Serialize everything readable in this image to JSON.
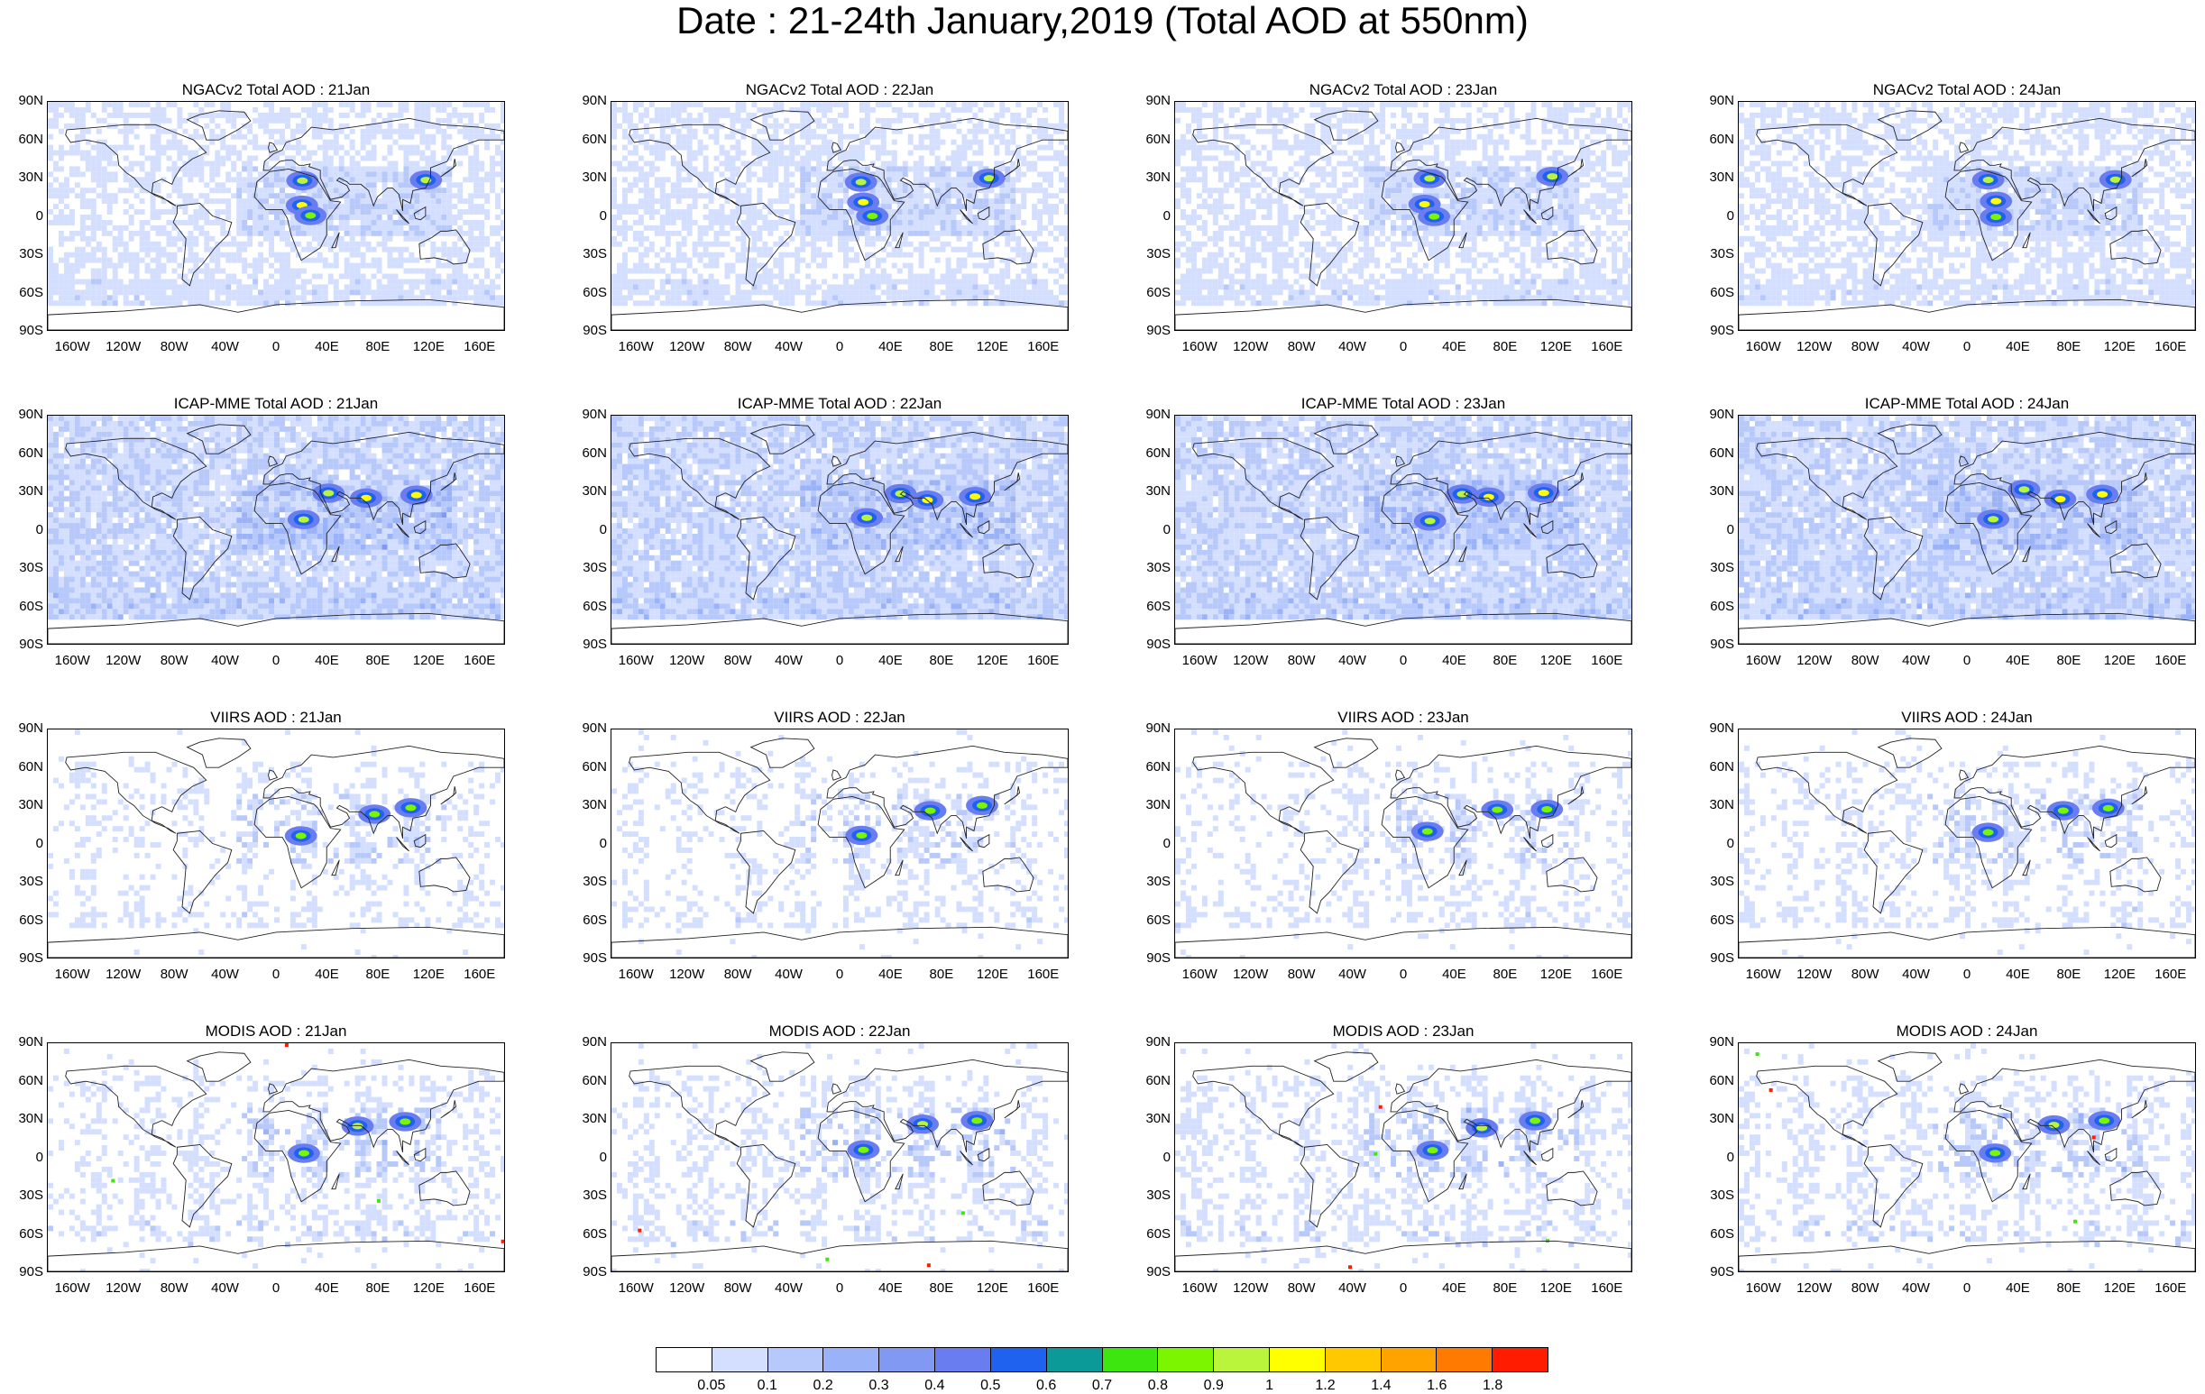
{
  "title": "Date : 21-24th January,2019 (Total AOD at 550nm)",
  "rows": [
    {
      "model": "NGACv2 Total AOD",
      "key": "ngac"
    },
    {
      "model": "ICAP-MME Total AOD",
      "key": "icap"
    },
    {
      "model": "VIIRS AOD",
      "key": "viirs"
    },
    {
      "model": "MODIS AOD",
      "key": "modis"
    }
  ],
  "panels": [
    {
      "title": "NGACv2 Total AOD : 21Jan"
    },
    {
      "title": "NGACv2 Total AOD : 22Jan"
    },
    {
      "title": "NGACv2 Total AOD : 23Jan"
    },
    {
      "title": "NGACv2 Total AOD : 24Jan"
    },
    {
      "title": "ICAP-MME Total AOD : 21Jan"
    },
    {
      "title": "ICAP-MME Total AOD : 22Jan"
    },
    {
      "title": "ICAP-MME Total AOD : 23Jan"
    },
    {
      "title": "ICAP-MME Total AOD : 24Jan"
    },
    {
      "title": "VIIRS AOD : 21Jan"
    },
    {
      "title": "VIIRS AOD : 22Jan"
    },
    {
      "title": "VIIRS AOD : 23Jan"
    },
    {
      "title": "VIIRS AOD : 24Jan"
    },
    {
      "title": "MODIS AOD : 21Jan"
    },
    {
      "title": "MODIS AOD : 22Jan"
    },
    {
      "title": "MODIS AOD : 23Jan"
    },
    {
      "title": "MODIS AOD : 24Jan"
    }
  ],
  "latitude_ticks": [
    "90N",
    "60N",
    "30N",
    "0",
    "30S",
    "60S",
    "90S"
  ],
  "longitude_ticks": [
    "160W",
    "120W",
    "80W",
    "40W",
    "0",
    "40E",
    "80E",
    "120E",
    "160E"
  ],
  "longitude_values": [
    -160,
    -120,
    -80,
    -40,
    0,
    40,
    80,
    120,
    160
  ],
  "colorbar": {
    "colors": [
      "#ffffff",
      "#d4dfff",
      "#b7c8fb",
      "#9ab2f8",
      "#8199f2",
      "#6a7df0",
      "#1f62ef",
      "#0c9a98",
      "#3ee60f",
      "#7cf500",
      "#bbf53b",
      "#ffff00",
      "#ffc800",
      "#ffa300",
      "#ff7a00",
      "#ff1c00"
    ],
    "labels": [
      "0.05",
      "0.1",
      "0.2",
      "0.3",
      "0.4",
      "0.5",
      "0.6",
      "0.7",
      "0.8",
      "0.9",
      "1",
      "1.2",
      "1.4",
      "1.6",
      "1.8"
    ]
  },
  "hotspots": {
    "ngac": [
      [
        20,
        10,
        3
      ],
      [
        20,
        28,
        2
      ],
      [
        115,
        30,
        2
      ],
      [
        25,
        0,
        1
      ]
    ],
    "icap": [
      [
        70,
        25,
        3
      ],
      [
        110,
        28,
        3
      ],
      [
        20,
        8,
        2
      ],
      [
        45,
        30,
        2
      ]
    ],
    "viirs": [
      [
        75,
        25,
        1
      ],
      [
        110,
        28,
        1
      ],
      [
        20,
        8,
        1
      ]
    ],
    "modis": [
      [
        65,
        25,
        2
      ],
      [
        105,
        28,
        1
      ],
      [
        20,
        5,
        1
      ]
    ]
  }
}
